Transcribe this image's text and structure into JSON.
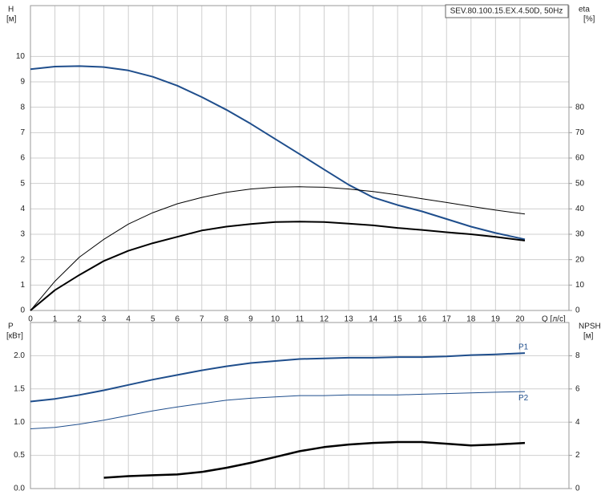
{
  "chart_data": [
    {
      "type": "line",
      "title": "SEV.80.100.15.EX.4.50D, 50Hz",
      "y_label": "H",
      "y_unit": "[м]",
      "y2_label": "eta",
      "y2_unit": "[%]",
      "x_label": "Q [л/с]",
      "x": [
        0,
        1,
        2,
        3,
        4,
        5,
        6,
        7,
        8,
        9,
        10,
        11,
        12,
        13,
        14,
        15,
        16,
        17,
        18,
        19,
        20.2
      ],
      "xlim": [
        0,
        22
      ],
      "xticks": [
        0,
        1,
        2,
        3,
        4,
        5,
        6,
        7,
        8,
        9,
        10,
        11,
        12,
        13,
        14,
        15,
        16,
        17,
        18,
        19,
        20
      ],
      "ylim": [
        0,
        12
      ],
      "yticks": [
        0,
        1,
        2,
        3,
        4,
        5,
        6,
        7,
        8,
        9,
        10
      ],
      "y2lim": [
        0,
        120
      ],
      "y2ticks": [
        0,
        10,
        20,
        30,
        40,
        50,
        60,
        70,
        80
      ],
      "grid": true,
      "series": [
        {
          "color": "#1f4e8c",
          "line_width": 2,
          "values": [
            9.5,
            9.6,
            9.62,
            9.58,
            9.45,
            9.2,
            8.85,
            8.4,
            7.9,
            7.35,
            6.75,
            6.15,
            5.55,
            4.95,
            4.45,
            4.15,
            3.9,
            3.6,
            3.3,
            3.05,
            2.8
          ]
        },
        {
          "color": "#000000",
          "line_width": 1,
          "axis": "y2",
          "values": [
            0,
            11.5,
            21,
            28,
            34,
            38.5,
            42,
            44.5,
            46.5,
            47.8,
            48.5,
            48.7,
            48.5,
            47.8,
            46.8,
            45.5,
            44,
            42.5,
            41,
            39.5,
            38
          ]
        },
        {
          "color": "#000000",
          "line_width": 2,
          "axis": "y2",
          "values": [
            0,
            8,
            14,
            19.5,
            23.5,
            26.5,
            29,
            31.5,
            33,
            34,
            34.8,
            35,
            34.8,
            34.2,
            33.5,
            32.5,
            31.7,
            30.8,
            30,
            29,
            27.5
          ]
        }
      ]
    },
    {
      "type": "line",
      "y_label": "P",
      "y_unit": "[кВт]",
      "y2_label": "NPSH",
      "y2_unit": "[м]",
      "x": [
        0,
        1,
        2,
        3,
        4,
        5,
        6,
        7,
        8,
        9,
        10,
        11,
        12,
        13,
        14,
        15,
        16,
        17,
        18,
        19,
        20.2
      ],
      "xlim": [
        0,
        22
      ],
      "xticks": [
        0,
        1,
        2,
        3,
        4,
        5,
        6,
        7,
        8,
        9,
        10,
        11,
        12,
        13,
        14,
        15,
        16,
        17,
        18,
        19,
        20
      ],
      "ylim": [
        0,
        2.5
      ],
      "yticks": [
        {
          "value": 0,
          "label": "0.0"
        },
        0.5,
        {
          "value": 1,
          "label": "1.0"
        },
        1.5,
        {
          "value": 2,
          "label": "2.0"
        }
      ],
      "y2lim": [
        0,
        10
      ],
      "y2ticks": [
        0,
        2,
        4,
        6,
        8
      ],
      "grid": true,
      "series": [
        {
          "name": "P1",
          "color": "#1f4e8c",
          "line_width": 2,
          "values": [
            1.31,
            1.35,
            1.41,
            1.48,
            1.56,
            1.64,
            1.71,
            1.78,
            1.84,
            1.89,
            1.92,
            1.95,
            1.96,
            1.97,
            1.97,
            1.98,
            1.98,
            1.99,
            2.01,
            2.02,
            2.04
          ]
        },
        {
          "name": "P2",
          "color": "#1f4e8c",
          "line_width": 1,
          "values": [
            0.9,
            0.92,
            0.97,
            1.03,
            1.1,
            1.17,
            1.23,
            1.28,
            1.33,
            1.36,
            1.38,
            1.4,
            1.4,
            1.41,
            1.41,
            1.41,
            1.42,
            1.43,
            1.44,
            1.45,
            1.46
          ]
        },
        {
          "color": "#000000",
          "line_width": 2.5,
          "axis": "y2",
          "values": [
            null,
            null,
            null,
            0.65,
            0.75,
            0.8,
            0.85,
            1.0,
            1.25,
            1.55,
            1.9,
            2.25,
            2.5,
            2.65,
            2.75,
            2.8,
            2.8,
            2.7,
            2.6,
            2.65,
            2.75
          ]
        }
      ]
    }
  ]
}
